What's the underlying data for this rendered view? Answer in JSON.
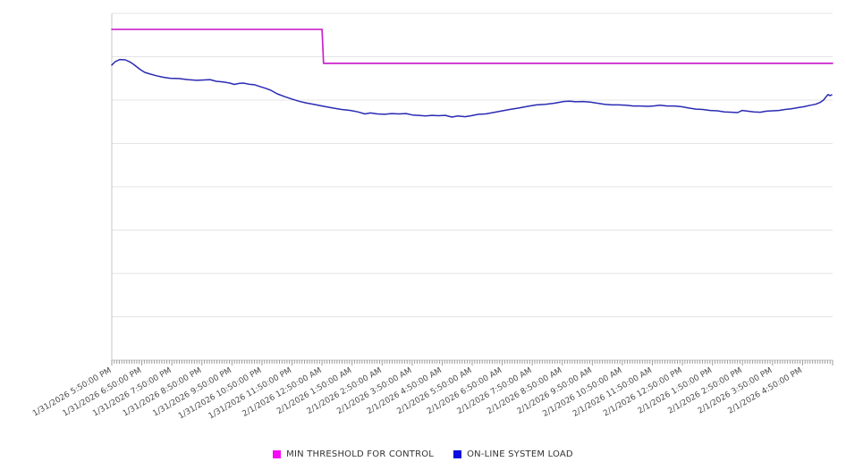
{
  "chart_data": {
    "type": "line",
    "title": "",
    "xlabel": "",
    "ylabel": "",
    "x_hours": 24,
    "x_minor_ticks_per_hour": 12,
    "x_tick_labels": [
      "1/31/2026 5:50:00 PM",
      "1/31/2026 6:50:00 PM",
      "1/31/2026 7:50:00 PM",
      "1/31/2026 8:50:00 PM",
      "1/31/2026 9:50:00 PM",
      "1/31/2026 10:50:00 PM",
      "1/31/2026 11:50:00 PM",
      "2/1/2026 12:50:00 AM",
      "2/1/2026 1:50:00 AM",
      "2/1/2026 2:50:00 AM",
      "2/1/2026 3:50:00 AM",
      "2/1/2026 4:50:00 AM",
      "2/1/2026 5:50:00 AM",
      "2/1/2026 6:50:00 AM",
      "2/1/2026 7:50:00 AM",
      "2/1/2026 8:50:00 AM",
      "2/1/2026 9:50:00 AM",
      "2/1/2026 10:50:00 AM",
      "2/1/2026 11:50:00 AM",
      "2/1/2026 12:50:00 PM",
      "2/1/2026 1:50:00 PM",
      "2/1/2026 2:50:00 PM",
      "2/1/2026 3:50:00 PM",
      "2/1/2026 4:50:00 PM"
    ],
    "y_axis": {
      "labels_visible": false,
      "min": 0,
      "max": 100,
      "gridline_divisions": 8
    },
    "grid": "horizontal",
    "colors": {
      "background": "#ffffff",
      "gridline": "#e4e4e4",
      "axis": "#c9c9c9",
      "tick": "#9a9a9a"
    },
    "legend": {
      "position": "bottom-center"
    },
    "series": [
      {
        "id": "min-threshold-for-control",
        "name": "MIN THRESHOLD FOR CONTROL",
        "color": "#cc22cc",
        "legend_color": "#f50cf5",
        "width": 1.7,
        "points": [
          [
            0,
            95.4
          ],
          [
            7.0,
            95.4
          ],
          [
            7.05,
            85.6
          ],
          [
            24,
            85.6
          ]
        ]
      },
      {
        "id": "on-line-system-load",
        "name": "ON-LINE SYSTEM LOAD",
        "color": "#2a2ab4",
        "legend_color": "#0d0de0",
        "width": 1.5,
        "points": [
          [
            0,
            85.1
          ],
          [
            0.12,
            86.1
          ],
          [
            0.27,
            86.7
          ],
          [
            0.45,
            86.6
          ],
          [
            0.6,
            86.0
          ],
          [
            0.71,
            85.4
          ],
          [
            0.8,
            84.8
          ],
          [
            0.95,
            83.8
          ],
          [
            1.1,
            83.0
          ],
          [
            1.28,
            82.5
          ],
          [
            1.49,
            82.0
          ],
          [
            1.7,
            81.6
          ],
          [
            1.94,
            81.3
          ],
          [
            2.23,
            81.2
          ],
          [
            2.53,
            80.9
          ],
          [
            2.83,
            80.7
          ],
          [
            3.07,
            80.8
          ],
          [
            3.27,
            80.9
          ],
          [
            3.48,
            80.4
          ],
          [
            3.72,
            80.2
          ],
          [
            3.93,
            79.9
          ],
          [
            4.08,
            79.5
          ],
          [
            4.23,
            79.8
          ],
          [
            4.38,
            79.9
          ],
          [
            4.56,
            79.6
          ],
          [
            4.76,
            79.4
          ],
          [
            4.94,
            78.9
          ],
          [
            5.12,
            78.4
          ],
          [
            5.3,
            77.8
          ],
          [
            5.51,
            76.8
          ],
          [
            5.75,
            76.0
          ],
          [
            5.99,
            75.3
          ],
          [
            6.22,
            74.7
          ],
          [
            6.46,
            74.2
          ],
          [
            6.76,
            73.7
          ],
          [
            7.06,
            73.2
          ],
          [
            7.36,
            72.7
          ],
          [
            7.65,
            72.3
          ],
          [
            7.95,
            72.0
          ],
          [
            8.19,
            71.6
          ],
          [
            8.43,
            71.0
          ],
          [
            8.61,
            71.3
          ],
          [
            8.84,
            71.0
          ],
          [
            9.08,
            70.9
          ],
          [
            9.32,
            71.1
          ],
          [
            9.56,
            71.0
          ],
          [
            9.8,
            71.1
          ],
          [
            10.01,
            70.7
          ],
          [
            10.21,
            70.6
          ],
          [
            10.45,
            70.4
          ],
          [
            10.66,
            70.6
          ],
          [
            10.87,
            70.5
          ],
          [
            11.11,
            70.6
          ],
          [
            11.32,
            70.1
          ],
          [
            11.52,
            70.4
          ],
          [
            11.76,
            70.2
          ],
          [
            11.97,
            70.5
          ],
          [
            12.21,
            70.9
          ],
          [
            12.45,
            71.0
          ],
          [
            12.69,
            71.4
          ],
          [
            12.95,
            71.8
          ],
          [
            13.25,
            72.3
          ],
          [
            13.55,
            72.7
          ],
          [
            13.85,
            73.2
          ],
          [
            14.14,
            73.6
          ],
          [
            14.44,
            73.8
          ],
          [
            14.74,
            74.1
          ],
          [
            15.04,
            74.6
          ],
          [
            15.25,
            74.7
          ],
          [
            15.45,
            74.5
          ],
          [
            15.69,
            74.6
          ],
          [
            15.93,
            74.4
          ],
          [
            16.17,
            74.1
          ],
          [
            16.41,
            73.8
          ],
          [
            16.65,
            73.6
          ],
          [
            16.88,
            73.6
          ],
          [
            17.12,
            73.5
          ],
          [
            17.36,
            73.3
          ],
          [
            17.6,
            73.3
          ],
          [
            17.84,
            73.2
          ],
          [
            18.04,
            73.3
          ],
          [
            18.25,
            73.5
          ],
          [
            18.49,
            73.3
          ],
          [
            18.73,
            73.3
          ],
          [
            18.97,
            73.1
          ],
          [
            19.21,
            72.7
          ],
          [
            19.45,
            72.4
          ],
          [
            19.68,
            72.3
          ],
          [
            19.92,
            72.0
          ],
          [
            20.16,
            71.9
          ],
          [
            20.4,
            71.6
          ],
          [
            20.64,
            71.5
          ],
          [
            20.84,
            71.4
          ],
          [
            20.99,
            72.0
          ],
          [
            21.17,
            71.8
          ],
          [
            21.38,
            71.6
          ],
          [
            21.59,
            71.5
          ],
          [
            21.8,
            71.8
          ],
          [
            22.01,
            71.9
          ],
          [
            22.21,
            72.0
          ],
          [
            22.42,
            72.3
          ],
          [
            22.63,
            72.5
          ],
          [
            22.84,
            72.8
          ],
          [
            23.05,
            73.1
          ],
          [
            23.26,
            73.5
          ],
          [
            23.43,
            73.8
          ],
          [
            23.58,
            74.3
          ],
          [
            23.7,
            75.0
          ],
          [
            23.79,
            76.0
          ],
          [
            23.85,
            76.6
          ],
          [
            23.91,
            76.3
          ],
          [
            23.97,
            76.5
          ]
        ]
      }
    ]
  }
}
